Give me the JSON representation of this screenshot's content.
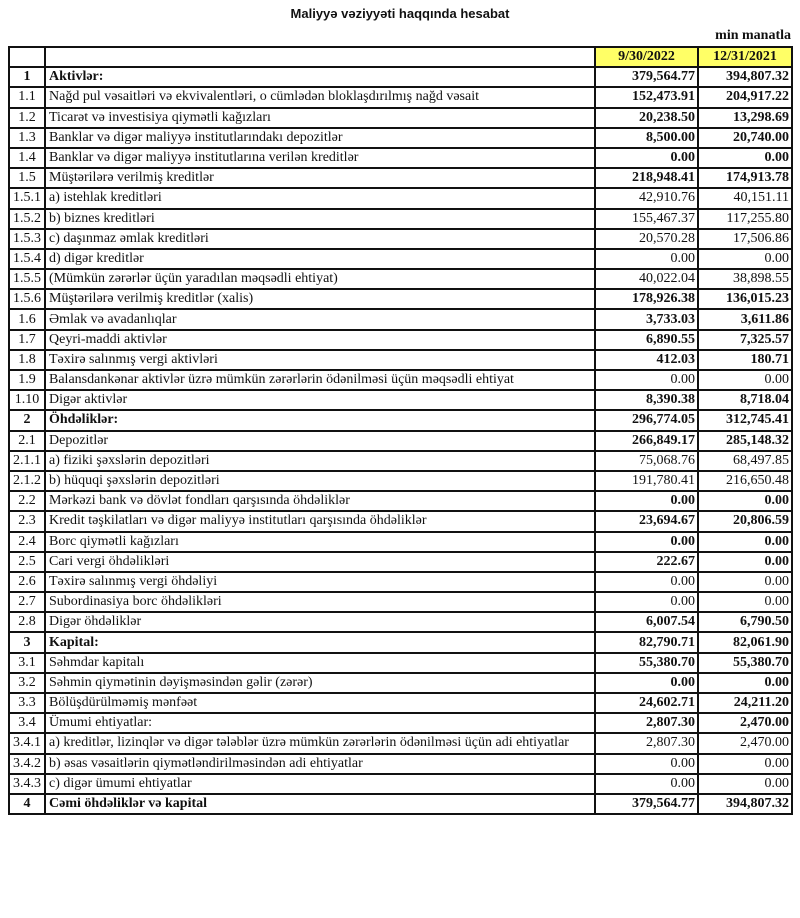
{
  "title": "Maliyyə vəziyyəti haqqında hesabat",
  "unit": "min manatla",
  "columns": [
    "9/30/2022",
    "12/31/2021"
  ],
  "header_color": "#ffff66",
  "rows": [
    {
      "n": "1",
      "label": "Aktivlər:",
      "v1": "379,564.77",
      "v2": "394,807.32",
      "section": true,
      "bold": true
    },
    {
      "n": "1.1",
      "label": "Nağd pul vəsaitləri və  ekvivalentləri, o cümlədən bloklaşdırılmış nağd vəsait",
      "v1": "152,473.91",
      "v2": "204,917.22",
      "bold": true
    },
    {
      "n": "1.2",
      "label": "Ticarət və investisiya qiymətli kağızları",
      "v1": "20,238.50",
      "v2": "13,298.69",
      "bold": true
    },
    {
      "n": "1.3",
      "label": "Banklar və digər maliyyə institutlarındakı depozitlər",
      "v1": "8,500.00",
      "v2": "20,740.00",
      "bold": true
    },
    {
      "n": "1.4",
      "label": "Banklar və digər maliyyə institutlarına verilən kreditlər",
      "v1": "0.00",
      "v2": "0.00",
      "bold": true
    },
    {
      "n": "1.5",
      "label": "Müştərilərə verilmiş kreditlər",
      "v1": "218,948.41",
      "v2": "174,913.78",
      "bold": true
    },
    {
      "n": "1.5.1",
      "label": "a) istehlak kreditləri",
      "v1": "42,910.76",
      "v2": "40,151.11",
      "bold": false
    },
    {
      "n": "1.5.2",
      "label": "b) biznes kreditləri",
      "v1": "155,467.37",
      "v2": "117,255.80",
      "bold": false
    },
    {
      "n": "1.5.3",
      "label": "c) daşınmaz əmlak kreditləri",
      "v1": "20,570.28",
      "v2": "17,506.86",
      "bold": false
    },
    {
      "n": "1.5.4",
      "label": "d) digər kreditlər",
      "v1": "0.00",
      "v2": "0.00",
      "bold": false
    },
    {
      "n": "1.5.5",
      "label": "(Mümkün zərərlər üçün yaradılan məqsədli ehtiyat)",
      "v1": "40,022.04",
      "v2": "38,898.55",
      "bold": false
    },
    {
      "n": "1.5.6",
      "label": "Müştərilərə verilmiş kreditlər (xalis)",
      "v1": "178,926.38",
      "v2": "136,015.23",
      "bold": true
    },
    {
      "n": "1.6",
      "label": "Əmlak və avadanlıqlar",
      "v1": "3,733.03",
      "v2": "3,611.86",
      "bold": true
    },
    {
      "n": "1.7",
      "label": "Qeyri-maddi aktivlər",
      "v1": "6,890.55",
      "v2": "7,325.57",
      "bold": true
    },
    {
      "n": "1.8",
      "label": "Təxirə salınmış vergi aktivləri",
      "v1": "412.03",
      "v2": "180.71",
      "bold": true
    },
    {
      "n": "1.9",
      "label": "Balansdankənar aktivlər üzrə mümkün zərərlərin ödənilməsi üçün məqsədli ehtiyat",
      "v1": "0.00",
      "v2": "0.00",
      "bold": false
    },
    {
      "n": "1.10",
      "label": "Digər aktivlər",
      "v1": "8,390.38",
      "v2": "8,718.04",
      "bold": true
    },
    {
      "n": "2",
      "label": "Öhdəliklər:",
      "v1": "296,774.05",
      "v2": "312,745.41",
      "section": true,
      "bold": true
    },
    {
      "n": "2.1",
      "label": "Depozitlər",
      "v1": "266,849.17",
      "v2": "285,148.32",
      "bold": true
    },
    {
      "n": "2.1.1",
      "label": "a) fiziki şəxslərin depozitləri",
      "v1": "75,068.76",
      "v2": "68,497.85",
      "bold": false
    },
    {
      "n": "2.1.2",
      "label": "b) hüquqi şəxslərin depozitləri",
      "v1": "191,780.41",
      "v2": "216,650.48",
      "bold": false
    },
    {
      "n": "2.2",
      "label": "Mərkəzi bank və dövlət fondları qarşısında öhdəliklər",
      "v1": "0.00",
      "v2": "0.00",
      "bold": true
    },
    {
      "n": "2.3",
      "label": "Kredit təşkilatları və digər maliyyə institutları qarşısında öhdəliklər",
      "v1": "23,694.67",
      "v2": "20,806.59",
      "bold": true
    },
    {
      "n": "2.4",
      "label": "Borc qiymətli kağızları",
      "v1": "0.00",
      "v2": "0.00",
      "bold": true
    },
    {
      "n": "2.5",
      "label": "Cari vergi öhdəlikləri",
      "v1": "222.67",
      "v2": "0.00",
      "bold": true
    },
    {
      "n": "2.6",
      "label": "Təxirə salınmış vergi öhdəliyi",
      "v1": "0.00",
      "v2": "0.00",
      "bold": false
    },
    {
      "n": "2.7",
      "label": "Subordinasiya borc öhdəlikləri",
      "v1": "0.00",
      "v2": "0.00",
      "bold": false
    },
    {
      "n": "2.8",
      "label": "Digər öhdəliklər",
      "v1": "6,007.54",
      "v2": "6,790.50",
      "bold": true
    },
    {
      "n": "3",
      "label": "Kapital:",
      "v1": "82,790.71",
      "v2": "82,061.90",
      "section": true,
      "bold": true
    },
    {
      "n": "3.1",
      "label": "Səhmdar kapitalı",
      "v1": "55,380.70",
      "v2": "55,380.70",
      "bold": true
    },
    {
      "n": "3.2",
      "label": "Səhmin qiymətinin dəyişməsindən gəlir (zərər)",
      "v1": "0.00",
      "v2": "0.00",
      "bold": true
    },
    {
      "n": "3.3",
      "label": "Bölüşdürülməmiş mənfəət",
      "v1": "24,602.71",
      "v2": "24,211.20",
      "bold": true
    },
    {
      "n": "3.4",
      "label": "Ümumi ehtiyatlar:",
      "v1": "2,807.30",
      "v2": "2,470.00",
      "bold": true
    },
    {
      "n": "3.4.1",
      "label": "a) kreditlər, lizinqlər və digər tələblər üzrə mümkün zərərlərin ödənilməsi üçün adi ehtiyatlar",
      "v1": "2,807.30",
      "v2": "2,470.00",
      "bold": false
    },
    {
      "n": "3.4.2",
      "label": "b) əsas vəsaitlərin qiymətləndirilməsindən adi ehtiyatlar",
      "v1": "0.00",
      "v2": "0.00",
      "bold": false
    },
    {
      "n": "3.4.3",
      "label": "c) digər ümumi ehtiyatlar",
      "v1": "0.00",
      "v2": "0.00",
      "bold": false
    },
    {
      "n": "4",
      "label": "Cəmi öhdəliklər və kapital",
      "v1": "379,564.77",
      "v2": "394,807.32",
      "section": true,
      "bold": true
    }
  ]
}
